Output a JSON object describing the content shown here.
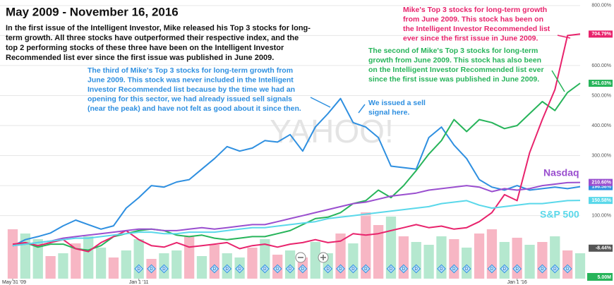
{
  "chart_data": {
    "type": "line",
    "title": "May 2009 - November 16, 2016",
    "watermark": "YAHOO!",
    "categories": [
      "May 31 '09",
      null,
      null,
      null,
      null,
      null,
      null,
      null,
      null,
      null,
      "Jan 1 '11",
      null,
      null,
      null,
      null,
      null,
      null,
      null,
      null,
      null,
      null,
      null,
      null,
      null,
      null,
      null,
      null,
      null,
      null,
      null,
      null,
      null,
      null,
      null,
      null,
      null,
      null,
      null,
      null,
      null,
      "Jan 1 '16",
      null,
      null,
      null,
      null,
      null
    ],
    "ylim": [
      -110,
      809
    ],
    "yticks": [
      {
        "value": 100,
        "label": "100.00%"
      },
      {
        "value": 200,
        "label": "200.00%"
      },
      {
        "value": 300,
        "label": "300.00%"
      },
      {
        "value": 400,
        "label": "400.00%"
      },
      {
        "value": 500,
        "label": "500.00%"
      },
      {
        "value": 600,
        "label": "600.00%"
      },
      {
        "value": 700,
        "label": "700.00%"
      },
      {
        "value": 800,
        "label": "800.00%"
      }
    ],
    "grid": true,
    "series": [
      {
        "color": "#2e8fe0",
        "end_label": "196.58%",
        "values": [
          -1,
          20,
          30,
          42,
          66,
          85,
          70,
          55,
          66,
          125,
          160,
          200,
          195,
          212,
          220,
          255,
          290,
          330,
          315,
          325,
          350,
          345,
          370,
          315,
          395,
          440,
          490,
          410,
          395,
          360,
          265,
          260,
          255,
          360,
          395,
          335,
          290,
          220,
          195,
          185,
          200,
          185,
          190,
          195,
          190,
          196.58
        ]
      },
      {
        "color": "#27b45a",
        "end_label": "541.03%",
        "values": [
          0,
          10,
          -5,
          5,
          5,
          -10,
          -15,
          0,
          30,
          40,
          50,
          55,
          50,
          35,
          30,
          35,
          25,
          20,
          25,
          30,
          30,
          40,
          50,
          70,
          90,
          95,
          110,
          140,
          150,
          185,
          160,
          200,
          250,
          305,
          350,
          420,
          380,
          420,
          410,
          390,
          400,
          440,
          480,
          450,
          510,
          541.03
        ]
      },
      {
        "color": "#e8236c",
        "end_label": "704.79%",
        "values": [
          5,
          10,
          0,
          10,
          20,
          -10,
          -20,
          10,
          30,
          50,
          20,
          0,
          -5,
          10,
          -5,
          0,
          5,
          10,
          -10,
          0,
          5,
          -5,
          5,
          10,
          20,
          10,
          15,
          40,
          35,
          40,
          50,
          60,
          70,
          60,
          65,
          55,
          60,
          80,
          110,
          170,
          150,
          310,
          420,
          520,
          700,
          704.79
        ]
      },
      {
        "name": "Nasdaq",
        "color": "#9a4fcf",
        "end_label": "210.60%",
        "values": [
          0,
          5,
          10,
          15,
          25,
          30,
          35,
          40,
          45,
          50,
          55,
          55,
          50,
          50,
          55,
          60,
          55,
          60,
          65,
          70,
          70,
          80,
          90,
          100,
          110,
          120,
          130,
          140,
          145,
          155,
          165,
          170,
          175,
          185,
          190,
          195,
          200,
          195,
          180,
          190,
          185,
          190,
          200,
          205,
          210,
          210.6
        ]
      },
      {
        "name": "S&P 500",
        "color": "#5ad8ea",
        "end_label": "150.58%",
        "values": [
          0,
          5,
          10,
          15,
          20,
          25,
          25,
          30,
          35,
          40,
          45,
          45,
          40,
          40,
          45,
          45,
          45,
          50,
          55,
          60,
          60,
          65,
          70,
          75,
          80,
          90,
          95,
          100,
          105,
          110,
          115,
          120,
          125,
          130,
          140,
          145,
          150,
          135,
          125,
          130,
          135,
          140,
          140,
          145,
          150,
          150.58
        ]
      }
    ],
    "baseline_label": {
      "value": -8.44,
      "label": "-8.44%"
    },
    "volume": {
      "ylim": [
        0,
        5
      ],
      "label": "5.00M",
      "values": [
        3.5,
        3.2,
        2.8,
        1.6,
        1.8,
        2.5,
        3.0,
        2.2,
        1.5,
        2.0,
        2.8,
        1.4,
        1.8,
        2.0,
        3.0,
        1.6,
        2.4,
        1.8,
        1.5,
        2.2,
        2.8,
        1.7,
        2.0,
        1.5,
        2.6,
        1.8,
        3.2,
        2.5,
        4.7,
        3.8,
        4.4,
        3.0,
        2.6,
        2.4,
        3.0,
        2.8,
        2.2,
        3.2,
        3.5,
        2.6,
        2.9,
        2.4,
        2.6,
        3.0,
        2.0,
        1.8
      ],
      "colors": [
        "#f7b6c4",
        "#b5e8cf",
        "#b5e8cf",
        "#f7b6c4",
        "#b5e8cf",
        "#f7b6c4",
        "#b5e8cf",
        "#b5e8cf",
        "#f7b6c4",
        "#b5e8cf",
        "#b5e8cf",
        "#f7b6c4",
        "#b5e8cf",
        "#b5e8cf",
        "#f7b6c4",
        "#b5e8cf",
        "#f7b6c4",
        "#b5e8cf",
        "#b5e8cf",
        "#f7b6c4",
        "#b5e8cf",
        "#f7b6c4",
        "#b5e8cf",
        "#f7b6c4",
        "#b5e8cf",
        "#b5e8cf",
        "#f7b6c4",
        "#b5e8cf",
        "#f7b6c4",
        "#f7b6c4",
        "#b5e8cf",
        "#f7b6c4",
        "#b5e8cf",
        "#b5e8cf",
        "#b5e8cf",
        "#f7b6c4",
        "#b5e8cf",
        "#f7b6c4",
        "#f7b6c4",
        "#b5e8cf",
        "#f7b6c4",
        "#b5e8cf",
        "#f7b6c4",
        "#b5e8cf",
        "#f7b6c4",
        "#b5e8cf"
      ]
    },
    "dividends": {
      "label": "D",
      "at": [
        10,
        11,
        12,
        16,
        17,
        18,
        20,
        21,
        22,
        23,
        25,
        26,
        27,
        28,
        30,
        31,
        32,
        34,
        35,
        36,
        38,
        39,
        40,
        42,
        43,
        44
      ]
    },
    "annotations": [
      {
        "color": "#111111",
        "lines": [
          "In the first issue of the Intelligent Investor, Mike released his Top 3 stocks for long-",
          "term growth. All three stocks have outperformed their respective index, and the",
          "top 2 performing stocks of these three have been on the Intelligent Investor",
          "Recommended list ever since the first issue was published in June 2009."
        ]
      },
      {
        "color": "#2e8fe0",
        "lines": [
          "The third of Mike's Top 3 stocks for long-term growth from",
          "June 2009. This stock was never included in the Intelligent",
          "Investor Recommended list because by the time we had an",
          "opening for this sector, we had already issued sell signals",
          "(near the peak) and have not felt as good about it since then."
        ]
      },
      {
        "color": "#2e8fe0",
        "lines": [
          "We issued a sell",
          "signal here."
        ]
      },
      {
        "color": "#e8236c",
        "lines": [
          "Mike's Top 3 stocks for long-term growth",
          "from June 2009. This stock has been on",
          "the Intelligent Investor Recommended list",
          "ever since the first issue in June 2009."
        ]
      },
      {
        "color": "#27b45a",
        "lines": [
          "The second of Mike's Top 3 stocks for long-term",
          "growth from June 2009. This stock has also been",
          "on the Intelligent Investor Recommended list ever",
          "since the first issue was published in June 2009."
        ]
      }
    ]
  }
}
